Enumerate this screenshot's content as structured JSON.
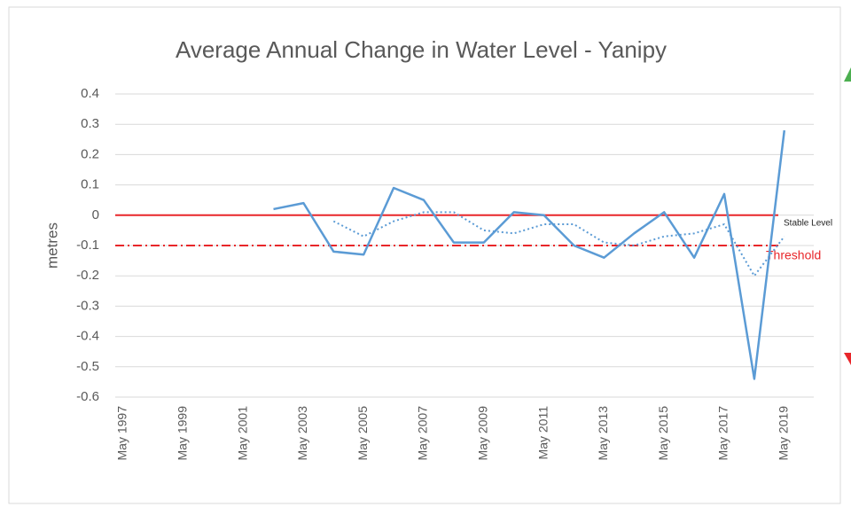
{
  "chart_data": {
    "type": "line",
    "title": "Average Annual Change in Water Level - Yanipy",
    "y_label": "metres",
    "categories": [
      "May 1997",
      null,
      "May 1999",
      null,
      "May 2001",
      null,
      "May 2003",
      null,
      "May 2005",
      null,
      "May 2007",
      null,
      "May 2009",
      null,
      "May 2011",
      null,
      "May 2013",
      null,
      "May 2015",
      null,
      "May 2017",
      null,
      "May 2019",
      null
    ],
    "series": [
      {
        "color": "#5b9bd5",
        "style": "solid",
        "values": [
          null,
          null,
          null,
          null,
          null,
          0.02,
          0.04,
          -0.12,
          -0.13,
          0.09,
          0.05,
          -0.09,
          -0.09,
          0.01,
          0.0,
          -0.1,
          -0.14,
          -0.06,
          0.01,
          -0.14,
          0.07,
          -0.54,
          0.28,
          null
        ]
      },
      {
        "color": "#5b9bd5",
        "style": "dotted",
        "values": [
          null,
          null,
          null,
          null,
          null,
          null,
          null,
          -0.02,
          -0.07,
          -0.02,
          0.01,
          0.01,
          -0.05,
          -0.06,
          -0.03,
          -0.03,
          -0.09,
          -0.1,
          -0.07,
          -0.06,
          -0.03,
          -0.2,
          -0.07,
          null
        ]
      }
    ],
    "reference_lines": [
      {
        "value": 0,
        "label": "Stable Level",
        "color": "#e8262a",
        "label_color": "#222222",
        "style": "solid"
      },
      {
        "value": -0.1,
        "label": "Threshold",
        "color": "#e8262a",
        "label_color": "#e8262a",
        "style": "dashdot"
      }
    ],
    "ylim": [
      -0.6,
      0.4
    ],
    "yticks": [
      0.4,
      0.3,
      0.2,
      0.1,
      0,
      -0.1,
      -0.2,
      -0.3,
      -0.4,
      -0.5,
      -0.6
    ],
    "grid": true
  }
}
